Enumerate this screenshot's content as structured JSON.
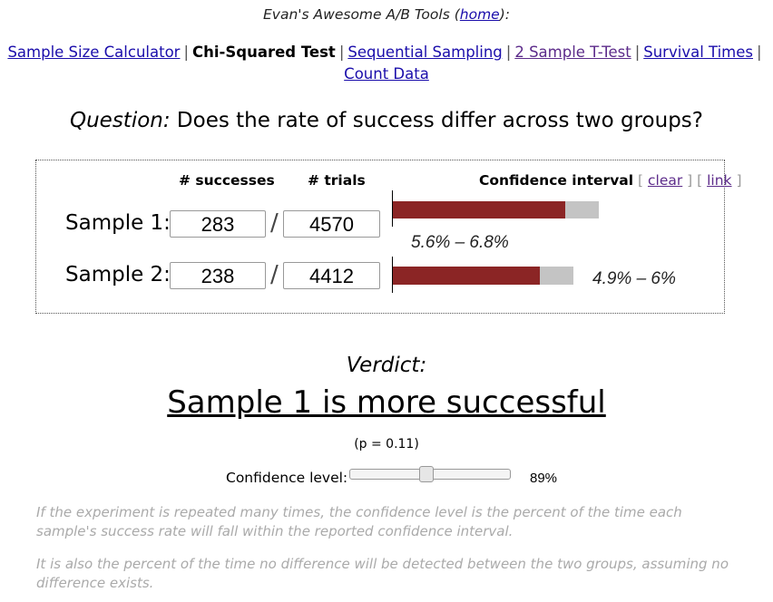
{
  "header": {
    "prefix": "Evan's Awesome A/B Tools (",
    "home_link": "home",
    "suffix": "):"
  },
  "nav": {
    "items": [
      {
        "label": "Sample Size Calculator"
      },
      {
        "label": "Chi-Squared Test"
      },
      {
        "label": "Sequential Sampling"
      },
      {
        "label": "2 Sample T-Test"
      },
      {
        "label": "Survival Times"
      },
      {
        "label": "Count Data"
      }
    ],
    "separator": "|"
  },
  "question": {
    "label": "Question:",
    "text": " Does the rate of success differ across two groups?"
  },
  "table": {
    "successes_header": "# successes",
    "trials_header": "# trials",
    "ci_header": "Confidence interval",
    "clear_prefix": " [ ",
    "clear_link": "clear",
    "mid_brackets": " ] [ ",
    "link_link": "link",
    "end_bracket": " ]",
    "slash": "/"
  },
  "samples": [
    {
      "label": "Sample 1:",
      "successes": "283",
      "trials": "4570",
      "ci_text": "5.6% – 6.8%"
    },
    {
      "label": "Sample 2:",
      "successes": "238",
      "trials": "4412",
      "ci_text": "4.9% – 6%"
    }
  ],
  "ci_bars": [
    {
      "fill_fraction": 0.838
    },
    {
      "fill_fraction": 0.815
    }
  ],
  "verdict": {
    "label": "Verdict:",
    "text": "Sample 1 is more successful",
    "p_value": "(p = 0.11)"
  },
  "confidence": {
    "label": "Confidence level:",
    "value": "89%",
    "level": 0.89
  },
  "notes": [
    "If the experiment is repeated many times, the confidence level is the percent of the time each sample's success rate will fall within the reported confidence interval.",
    "It is also the percent of the time no difference will be detected between the two groups, assuming no difference exists."
  ],
  "colors": {
    "bar_fill": "#8b2525",
    "bar_background": "#c4c4c4",
    "link": "#1a0dab",
    "visited_link": "#5c2b8a",
    "note_text": "#aaaaaa"
  }
}
